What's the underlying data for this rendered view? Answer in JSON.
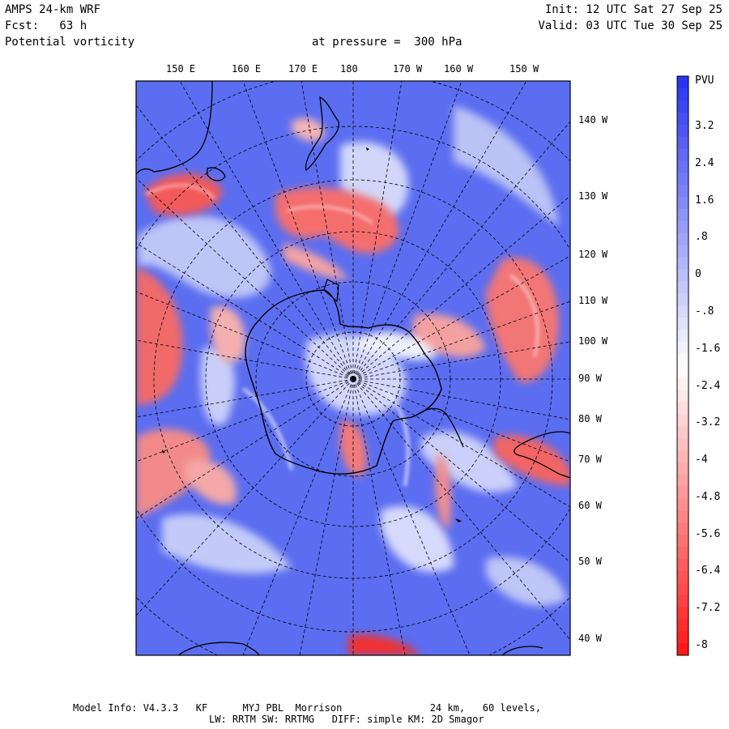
{
  "header": {
    "model": "AMPS 24-km WRF",
    "forecast": "Fcst:   63 h",
    "field": "Potential vorticity",
    "pressure": "at pressure =  300 hPa",
    "init": "Init: 12 UTC Sat 27 Sep 25",
    "valid": "Valid: 03 UTC Tue 30 Sep 25"
  },
  "map": {
    "top_labels": [
      "150 E",
      "160 E",
      "170 E",
      "180",
      "170 W",
      "160 W",
      "150 W"
    ],
    "right_labels": [
      "140 W",
      "130 W",
      "120 W",
      "110 W",
      "100 W",
      "90 W",
      "80 W",
      "70 W",
      "60 W",
      "50 W",
      "40 W"
    ]
  },
  "colorbar": {
    "unit": "PVU",
    "labels": [
      "3.2",
      "2.4",
      "1.6",
      ".8",
      "0",
      "-.8",
      "-1.6",
      "-2.4",
      "-3.2",
      "-4",
      "-4.8",
      "-5.6",
      "-6.4",
      "-7.2",
      "-8"
    ],
    "colors": {
      "high": "#2a35f0",
      "mid": "#ffffff",
      "low": "#ff1a1a"
    }
  },
  "footer": {
    "line1": "Model Info: V4.3.3   KF      MYJ PBL  Morrison               24 km,   60 levels,",
    "line2": "LW: RRTM SW: RRTMG   DIFF: simple KM: 2D Smagor"
  }
}
